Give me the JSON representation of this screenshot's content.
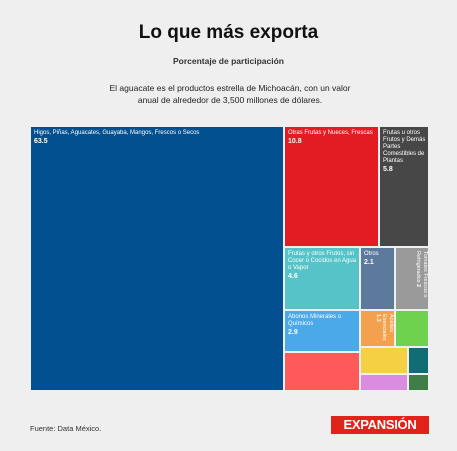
{
  "header": {
    "title": "Lo que más exporta",
    "subtitle": "Porcentaje de participación",
    "description": "El aguacate es el productos estrella de Michoacán, con un valor anual de alrededor de 3,500 millones de dólares."
  },
  "footer": {
    "source": "Fuente: Data México.",
    "logo": "EXPANSIÓN"
  },
  "chart_data": {
    "type": "treemap",
    "unit": "%",
    "items": [
      {
        "label": "Higos, Piñas, Aguacates, Guayaba, Mangos, Frescos o Secos",
        "value": 63.5,
        "value_text": "63.5",
        "color": "#02508f"
      },
      {
        "label": "Otras Frutas y Nueces, Frescas",
        "value": 10.8,
        "value_text": "10.8",
        "color": "#e31b23"
      },
      {
        "label": "Frutas u otros Frutos y Demás Partes Comestibles de Plantas",
        "value": 5.8,
        "value_text": "5.8",
        "color": "#474747"
      },
      {
        "label": "Frutas y otros Frutos, sin Cocer o Cocidos en Agua o Vapor",
        "value": 4.6,
        "value_text": "4.6",
        "color": "#55c3c8"
      },
      {
        "label": "Abonos Minerales o Químicos",
        "value": 2.9,
        "value_text": "2.9",
        "color": "#4aa9e8"
      },
      {
        "label": "Otros",
        "value": 2.1,
        "value_text": "2.1",
        "color": "#5d7a9c"
      },
      {
        "label": "Tomates Frescos o Refrigerados",
        "value": 2,
        "value_text": "2",
        "color": "#9a9a9a"
      },
      {
        "label": "Aceites Esenciales",
        "value": 1.3,
        "value_text": "1.3",
        "color": "#f3a14d"
      },
      {
        "label": "",
        "value": null,
        "value_text": "",
        "color": "#ff5a5a"
      },
      {
        "label": "",
        "value": null,
        "value_text": "",
        "color": "#6fd24f"
      },
      {
        "label": "",
        "value": null,
        "value_text": "",
        "color": "#f6d043"
      },
      {
        "label": "",
        "value": null,
        "value_text": "",
        "color": "#0f6d73"
      },
      {
        "label": "",
        "value": null,
        "value_text": "",
        "color": "#d98ce0"
      },
      {
        "label": "",
        "value": null,
        "value_text": "",
        "color": "#3f7f47"
      }
    ]
  }
}
